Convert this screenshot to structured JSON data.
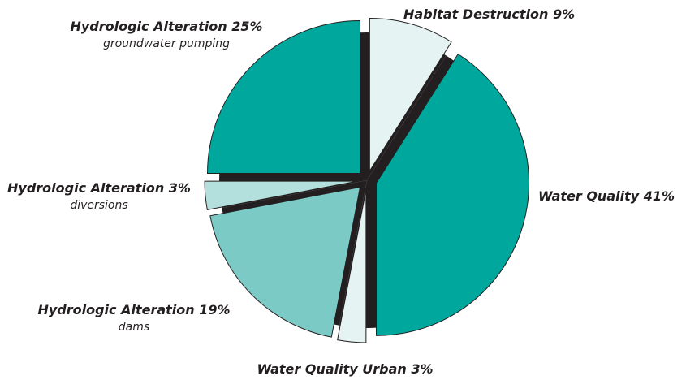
{
  "chart_data": {
    "type": "pie",
    "categories": [
      "Habitat Destruction",
      "Water Quality",
      "Water Quality Urban",
      "Hydrologic Alteration",
      "Hydrologic Alteration",
      "Hydrologic Alteration"
    ],
    "sublabels": [
      null,
      null,
      null,
      "dams",
      "diversions",
      "groundwater pumping"
    ],
    "values": [
      9,
      41,
      3,
      19,
      3,
      25
    ],
    "value_labels": [
      "9%",
      "41%",
      "3%",
      "19%",
      "3%",
      "25%"
    ],
    "colors": [
      "#e5f3f2",
      "#00a79d",
      "#e5f3f2",
      "#7ccac6",
      "#b3dfdc",
      "#00a79d"
    ]
  }
}
